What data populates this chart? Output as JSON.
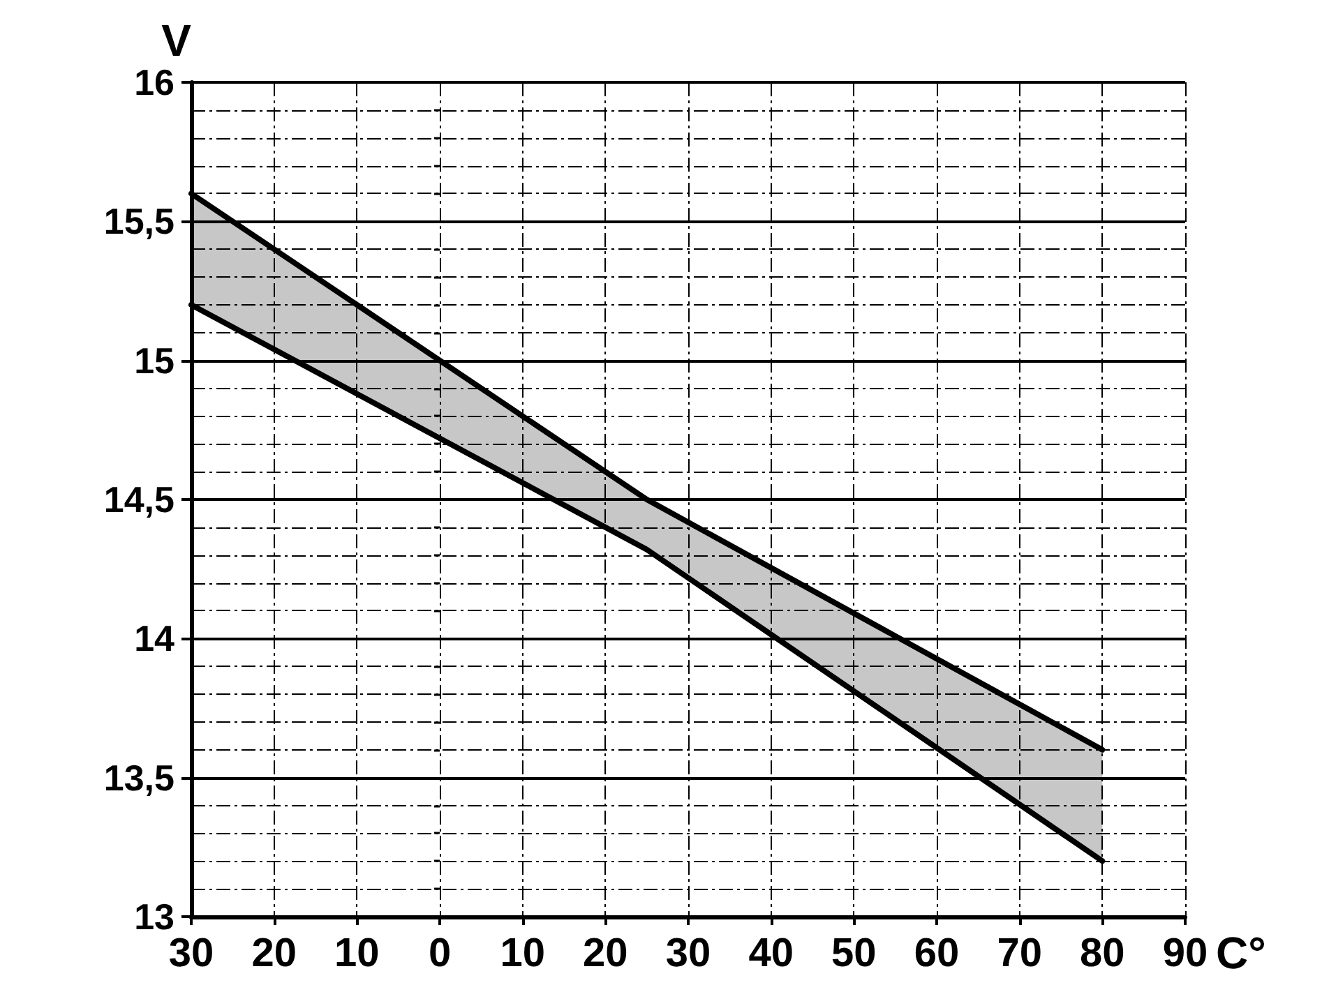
{
  "chart_data": {
    "type": "line",
    "xlabel": "C°",
    "ylabel": "V",
    "x": [
      -30,
      25,
      80
    ],
    "series": [
      {
        "color": "#000000",
        "values": [
          15.6,
          14.5,
          13.6
        ],
        "lower": [
          15.2,
          14.32,
          13.2
        ],
        "upper": [
          15.6,
          14.5,
          13.6
        ]
      },
      {
        "color": "#000000",
        "values": [
          15.2,
          14.32,
          13.2
        ]
      }
    ],
    "xlim": [
      -30,
      90
    ],
    "xticks": [
      {
        "value": -30,
        "label": "30"
      },
      {
        "value": -20,
        "label": "20"
      },
      {
        "value": -10,
        "label": "10"
      },
      0,
      10,
      20,
      30,
      40,
      50,
      60,
      70,
      80,
      90
    ],
    "ylim": [
      13,
      16
    ],
    "yticks": [
      13,
      {
        "value": 13.1,
        "label": null
      },
      {
        "value": 13.2,
        "label": null
      },
      {
        "value": 13.3,
        "label": null
      },
      {
        "value": 13.4,
        "label": null
      },
      {
        "value": 13.5,
        "label": "13,5"
      },
      {
        "value": 13.6,
        "label": null
      },
      {
        "value": 13.7,
        "label": null
      },
      {
        "value": 13.8,
        "label": null
      },
      {
        "value": 13.9,
        "label": null
      },
      14,
      {
        "value": 14.1,
        "label": null
      },
      {
        "value": 14.2,
        "label": null
      },
      {
        "value": 14.3,
        "label": null
      },
      {
        "value": 14.4,
        "label": null
      },
      {
        "value": 14.5,
        "label": "14,5"
      },
      {
        "value": 14.6,
        "label": null
      },
      {
        "value": 14.7,
        "label": null
      },
      {
        "value": 14.8,
        "label": null
      },
      {
        "value": 14.9,
        "label": null
      },
      15,
      {
        "value": 15.1,
        "label": null
      },
      {
        "value": 15.2,
        "label": null
      },
      {
        "value": 15.3,
        "label": null
      },
      {
        "value": 15.4,
        "label": null
      },
      {
        "value": 15.5,
        "label": "15,5"
      },
      {
        "value": 15.6,
        "label": null
      },
      {
        "value": 15.7,
        "label": null
      },
      {
        "value": 15.8,
        "label": null
      },
      {
        "value": 15.9,
        "label": null
      },
      16
    ],
    "grid": true,
    "line_style": "solid"
  }
}
